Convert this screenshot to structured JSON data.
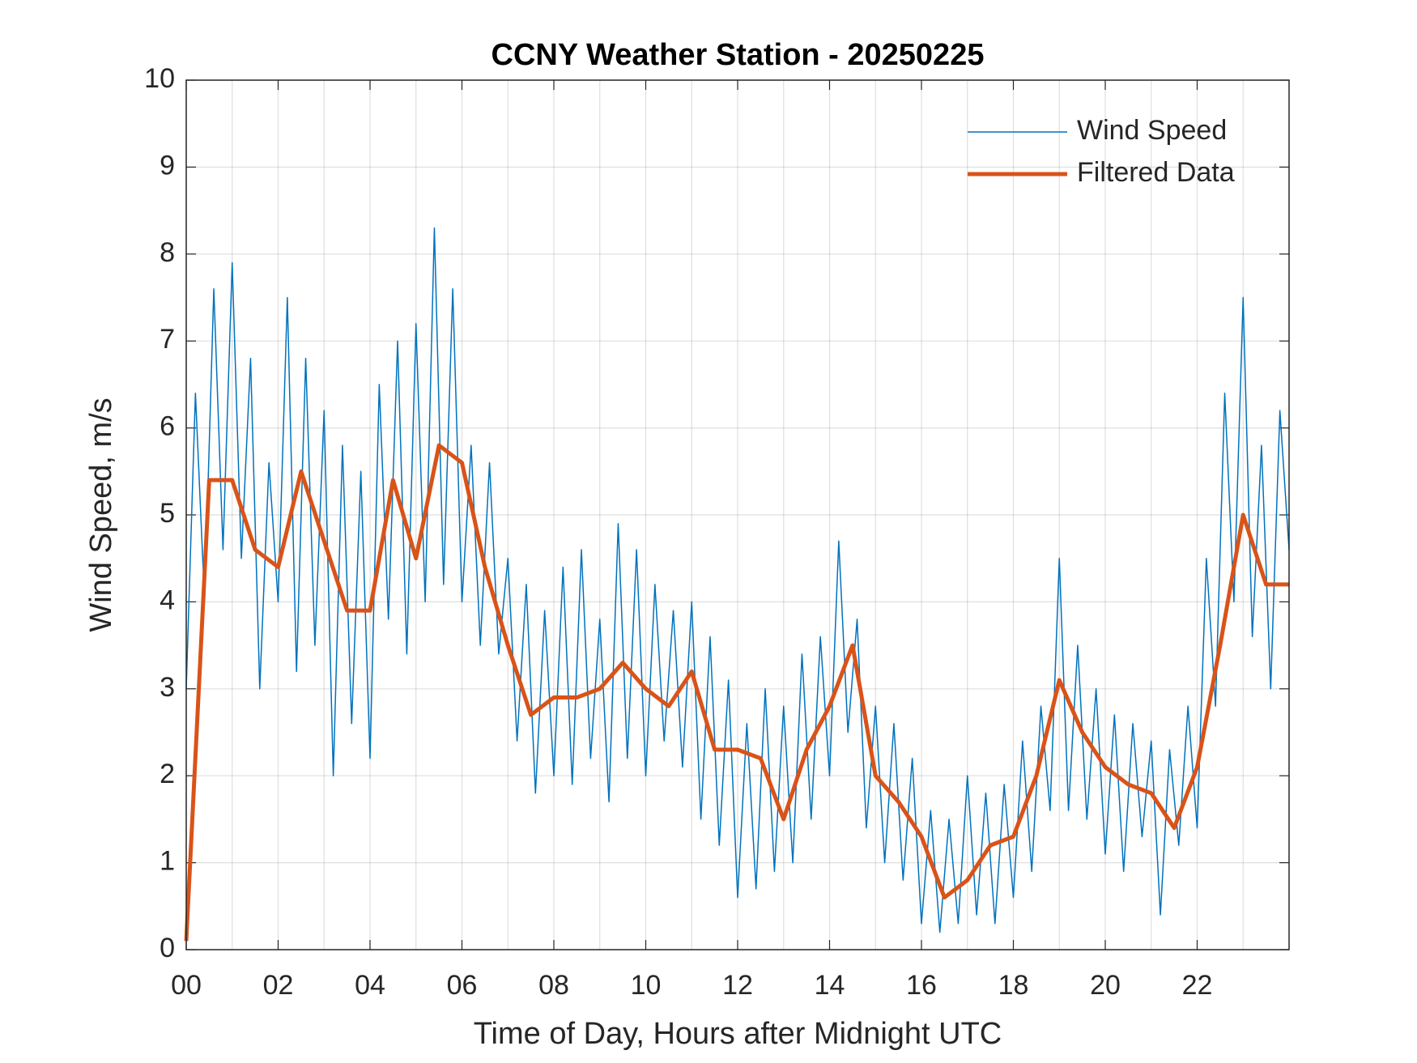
{
  "chart_data": {
    "type": "line",
    "title": "CCNY Weather Station - 20250225",
    "x_label": "Time of Day, Hours after Midnight UTC",
    "y_label": "Wind Speed, m/s",
    "xlim": [
      0,
      24
    ],
    "ylim": [
      0,
      10
    ],
    "xticks": [
      {
        "value": 0,
        "label": "00"
      },
      {
        "value": 2,
        "label": "02"
      },
      {
        "value": 4,
        "label": "04"
      },
      {
        "value": 6,
        "label": "06"
      },
      {
        "value": 8,
        "label": "08"
      },
      {
        "value": 10,
        "label": "10"
      },
      {
        "value": 12,
        "label": "12"
      },
      {
        "value": 14,
        "label": "14"
      },
      {
        "value": 16,
        "label": "16"
      },
      {
        "value": 18,
        "label": "18"
      },
      {
        "value": 20,
        "label": "20"
      },
      {
        "value": 22,
        "label": "22"
      }
    ],
    "xminorticks": [
      1,
      3,
      5,
      7,
      9,
      11,
      13,
      15,
      17,
      19,
      21,
      23
    ],
    "yticks": [
      0,
      1,
      2,
      3,
      4,
      5,
      6,
      7,
      8,
      9,
      10
    ],
    "grid": true,
    "legend": "top-right",
    "series": [
      {
        "name": "Wind Speed",
        "color": "#0072BD",
        "width": 1.5,
        "x": [
          0,
          0.2,
          0.4,
          0.6,
          0.8,
          1,
          1.2,
          1.4,
          1.6,
          1.8,
          2,
          2.2,
          2.4,
          2.6,
          2.8,
          3,
          3.2,
          3.4,
          3.6,
          3.8,
          4,
          4.2,
          4.4,
          4.6,
          4.8,
          5,
          5.2,
          5.4,
          5.6,
          5.8,
          6,
          6.2,
          6.4,
          6.6,
          6.8,
          7,
          7.2,
          7.4,
          7.6,
          7.8,
          8,
          8.2,
          8.4,
          8.6,
          8.8,
          9,
          9.2,
          9.4,
          9.6,
          9.8,
          10,
          10.2,
          10.4,
          10.6,
          10.8,
          11,
          11.2,
          11.4,
          11.6,
          11.8,
          12,
          12.2,
          12.4,
          12.6,
          12.8,
          13,
          13.2,
          13.4,
          13.6,
          13.8,
          14,
          14.2,
          14.4,
          14.6,
          14.8,
          15,
          15.2,
          15.4,
          15.6,
          15.8,
          16,
          16.2,
          16.4,
          16.6,
          16.8,
          17,
          17.2,
          17.4,
          17.6,
          17.8,
          18,
          18.2,
          18.4,
          18.6,
          18.8,
          19,
          19.2,
          19.4,
          19.6,
          19.8,
          20,
          20.2,
          20.4,
          20.6,
          20.8,
          21,
          21.2,
          21.4,
          21.6,
          21.8,
          22,
          22.2,
          22.4,
          22.6,
          22.8,
          23,
          23.2,
          23.4,
          23.6,
          23.8,
          24
        ],
        "values": [
          3.0,
          6.4,
          4.0,
          7.6,
          4.6,
          7.9,
          4.5,
          6.8,
          3.0,
          5.6,
          4.0,
          7.5,
          3.2,
          6.8,
          3.5,
          6.2,
          2.0,
          5.8,
          2.6,
          5.5,
          2.2,
          6.5,
          3.8,
          7.0,
          3.4,
          7.2,
          4.0,
          8.3,
          4.2,
          7.6,
          4.0,
          5.8,
          3.5,
          5.6,
          3.4,
          4.5,
          2.4,
          4.2,
          1.8,
          3.9,
          2.0,
          4.4,
          1.9,
          4.6,
          2.2,
          3.8,
          1.7,
          4.9,
          2.2,
          4.6,
          2.0,
          4.2,
          2.4,
          3.9,
          2.1,
          4.0,
          1.5,
          3.6,
          1.2,
          3.1,
          0.6,
          2.6,
          0.7,
          3.0,
          0.9,
          2.8,
          1.0,
          3.4,
          1.5,
          3.6,
          2.0,
          4.7,
          2.5,
          3.8,
          1.4,
          2.8,
          1.0,
          2.6,
          0.8,
          2.2,
          0.3,
          1.6,
          0.2,
          1.5,
          0.3,
          2.0,
          0.4,
          1.8,
          0.3,
          1.9,
          0.6,
          2.4,
          0.9,
          2.8,
          1.6,
          4.5,
          1.6,
          3.5,
          1.5,
          3.0,
          1.1,
          2.7,
          0.9,
          2.6,
          1.3,
          2.4,
          0.4,
          2.3,
          1.2,
          2.8,
          1.4,
          4.5,
          2.8,
          6.4,
          4.0,
          7.5,
          3.6,
          5.8,
          3.0,
          6.2,
          4.6
        ]
      },
      {
        "name": "Filtered Data",
        "color": "#D95319",
        "width": 5,
        "x": [
          0,
          0.5,
          1,
          1.5,
          2,
          2.5,
          3,
          3.5,
          4,
          4.5,
          5,
          5.5,
          6,
          6.5,
          7,
          7.5,
          8,
          8.5,
          9,
          9.5,
          10,
          10.5,
          11,
          11.5,
          12,
          12.5,
          13,
          13.5,
          14,
          14.5,
          15,
          15.5,
          16,
          16.5,
          17,
          17.5,
          18,
          18.5,
          19,
          19.5,
          20,
          20.5,
          21,
          21.5,
          22,
          22.5,
          23,
          23.5,
          24
        ],
        "values": [
          0.1,
          5.4,
          5.4,
          4.6,
          4.4,
          5.5,
          4.7,
          3.9,
          3.9,
          5.4,
          4.5,
          5.8,
          5.6,
          4.4,
          3.5,
          2.7,
          2.9,
          2.9,
          3.0,
          3.3,
          3.0,
          2.8,
          3.2,
          2.3,
          2.3,
          2.2,
          1.5,
          2.3,
          2.8,
          3.5,
          2.0,
          1.7,
          1.3,
          0.6,
          0.8,
          1.2,
          1.3,
          2.0,
          3.1,
          2.5,
          2.1,
          1.9,
          1.8,
          1.4,
          2.1,
          3.5,
          5.0,
          4.2,
          4.2
        ]
      }
    ]
  }
}
